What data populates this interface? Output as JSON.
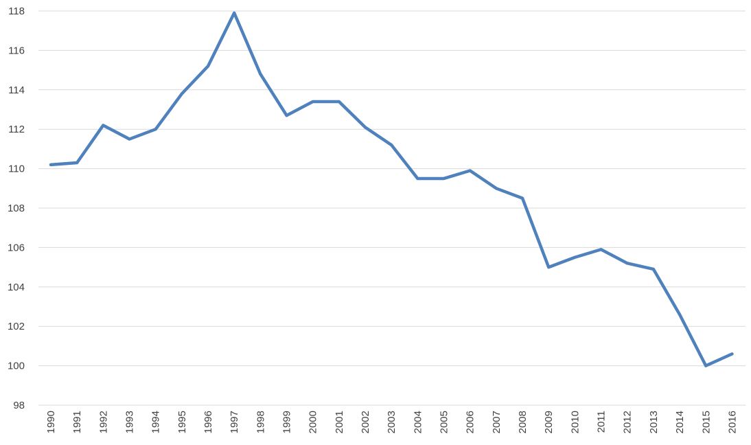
{
  "chart_data": {
    "type": "line",
    "title": "",
    "xlabel": "",
    "ylabel": "",
    "categories": [
      "1990",
      "1991",
      "1992",
      "1993",
      "1994",
      "1995",
      "1996",
      "1997",
      "1998",
      "1999",
      "2000",
      "2001",
      "2002",
      "2003",
      "2004",
      "2005",
      "2006",
      "2007",
      "2008",
      "2009",
      "2010",
      "2011",
      "2012",
      "2013",
      "2014",
      "2015",
      "2016"
    ],
    "series": [
      {
        "color": "#4f81bd",
        "values": [
          110.2,
          110.3,
          112.2,
          111.5,
          112.0,
          113.8,
          115.2,
          117.9,
          114.8,
          112.7,
          113.4,
          113.4,
          112.1,
          111.2,
          109.5,
          109.5,
          109.9,
          109.0,
          108.5,
          105.0,
          105.5,
          105.9,
          105.2,
          104.9,
          102.6,
          100.0,
          100.6
        ]
      }
    ],
    "ylim": [
      98,
      118
    ],
    "yticks": [
      "98",
      "100",
      "102",
      "104",
      "106",
      "108",
      "110",
      "112",
      "114",
      "116",
      "118"
    ],
    "grid": true,
    "legend": "none"
  }
}
